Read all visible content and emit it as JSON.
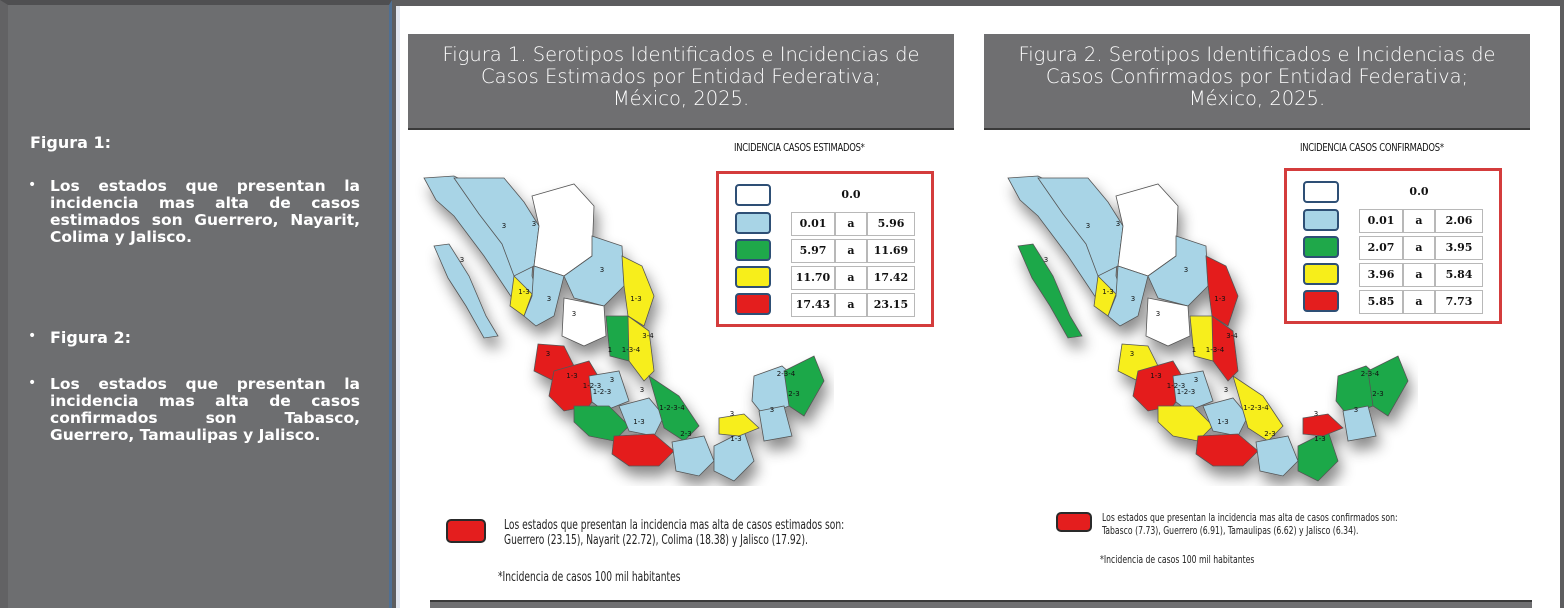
{
  "sidebar": {
    "fig1_heading": "Figura 1:",
    "fig1_bullet": "Los estados que presentan la incidencia mas alta de casos estimados son Guerrero, Nayarit, Colima y Jalisco.",
    "fig2_heading": "Figura 2:",
    "fig2_bullet": "Los estados que presentan la incidencia mas alta de casos confirmados son Tabasco, Guerrero, Tamaulipas y Jalisco.",
    "bullet_glyph": "•"
  },
  "figure1": {
    "title_line1": "Figura 1. Serotipos Identificados e Incidencias de",
    "title_line2": "Casos Estimados por Entidad Federativa;",
    "title_line3": "México, 2025.",
    "legend_heading": "INCIDENCIA CASOS ESTIMADOS*",
    "legend": [
      {
        "from": "0.0",
        "sep": "",
        "to": "",
        "color": "#ffffff"
      },
      {
        "from": "0.01",
        "sep": "a",
        "to": "5.96",
        "color": "#a8d4e6"
      },
      {
        "from": "5.97",
        "sep": "a",
        "to": "11.69",
        "color": "#1fa84a"
      },
      {
        "from": "11.70",
        "sep": "a",
        "to": "17.42",
        "color": "#f7ee1a"
      },
      {
        "from": "17.43",
        "sep": "a",
        "to": "23.15",
        "color": "#e41e1e"
      }
    ],
    "note_line1": "Los estados que presentan la incidencia mas alta de casos estimados son:",
    "note_line2": "Guerrero (23.15), Nayarit (22.72), Colima (18.38) y Jalisco (17.92).",
    "footnote": "*Incidencia de casos 100 mil habitantes"
  },
  "figure2": {
    "title_line1": "Figura 2. Serotipos Identificados e Incidencias de",
    "title_line2": "Casos Confirmados por Entidad Federativa;",
    "title_line3": "México, 2025.",
    "legend_heading": "INCIDENCIA CASOS CONFIRMADOS*",
    "legend": [
      {
        "from": "0.0",
        "sep": "",
        "to": "",
        "color": "#ffffff"
      },
      {
        "from": "0.01",
        "sep": "a",
        "to": "2.06",
        "color": "#a8d4e6"
      },
      {
        "from": "2.07",
        "sep": "a",
        "to": "3.95",
        "color": "#1fa84a"
      },
      {
        "from": "3.96",
        "sep": "a",
        "to": "5.84",
        "color": "#f7ee1a"
      },
      {
        "from": "5.85",
        "sep": "a",
        "to": "7.73",
        "color": "#e41e1e"
      }
    ],
    "note_line1": "Los estados que presentan la incidencia mas alta de casos confirmados son:",
    "note_line2": "Tabasco (7.73), Guerrero (6.91), Tamaulipas (6.62) y Jalisco (6.34).",
    "footnote": "*Incidencia de casos 100 mil habitantes"
  },
  "map_labels": [
    "3",
    "3",
    "3",
    "3",
    "1-3",
    "3",
    "3",
    "1-3",
    "3-4",
    "1",
    "1-3-4",
    "3",
    "1-3",
    "1-2-3",
    "3",
    "1-3",
    "2-3",
    "1-2-3-4",
    "3",
    "1-3",
    "2-3-4",
    "2-3",
    "3",
    "1-2-3",
    "3"
  ],
  "colors": {
    "blue": "#a8d4e6",
    "green": "#1fa84a",
    "yellow": "#f7ee1a",
    "red": "#e41e1e",
    "white": "#ffffff",
    "panel_gray": "#6f6f71"
  }
}
